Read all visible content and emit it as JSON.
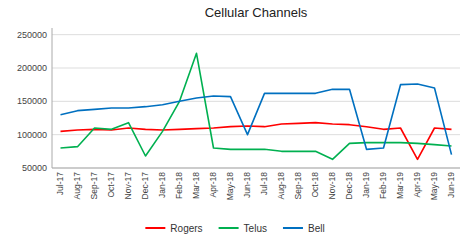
{
  "chart_data": {
    "type": "line",
    "title": "Cellular Channels",
    "categories": [
      "Jul-17",
      "Aug-17",
      "Sep-17",
      "Oct-17",
      "Nov-17",
      "Dec-17",
      "Jan-18",
      "Feb-18",
      "Mar-18",
      "Apr-18",
      "May-18",
      "Jun-18",
      "Jul-18",
      "Aug-18",
      "Sep-18",
      "Oct-18",
      "Nov-18",
      "Dec-18",
      "Jan-19",
      "Feb-19",
      "Mar-19",
      "Apr-19",
      "May-19",
      "Jun-19"
    ],
    "series": [
      {
        "name": "Rogers",
        "color": "#FF0000",
        "values": [
          105000,
          107000,
          108000,
          107000,
          110000,
          108000,
          107000,
          108000,
          109000,
          110000,
          112000,
          113000,
          112000,
          116000,
          117000,
          118000,
          116000,
          115000,
          112000,
          108000,
          110000,
          63000,
          110000,
          108000
        ]
      },
      {
        "name": "Telus",
        "color": "#00B050",
        "values": [
          80000,
          82000,
          110000,
          108000,
          118000,
          68000,
          105000,
          150000,
          222000,
          80000,
          78000,
          78000,
          78000,
          75000,
          75000,
          75000,
          63000,
          87000,
          88000,
          88000,
          88000,
          87000,
          85000,
          83000
        ]
      },
      {
        "name": "Bell",
        "color": "#0070C0",
        "values": [
          130000,
          136000,
          138000,
          140000,
          140000,
          142000,
          145000,
          150000,
          155000,
          158000,
          157000,
          100000,
          162000,
          162000,
          162000,
          162000,
          168000,
          168000,
          78000,
          80000,
          175000,
          176000,
          170000,
          70000
        ]
      }
    ],
    "ylim": [
      50000,
      260000
    ],
    "yticks": [
      50000,
      100000,
      150000,
      200000,
      250000
    ],
    "grid": true,
    "legend": "bottom"
  }
}
